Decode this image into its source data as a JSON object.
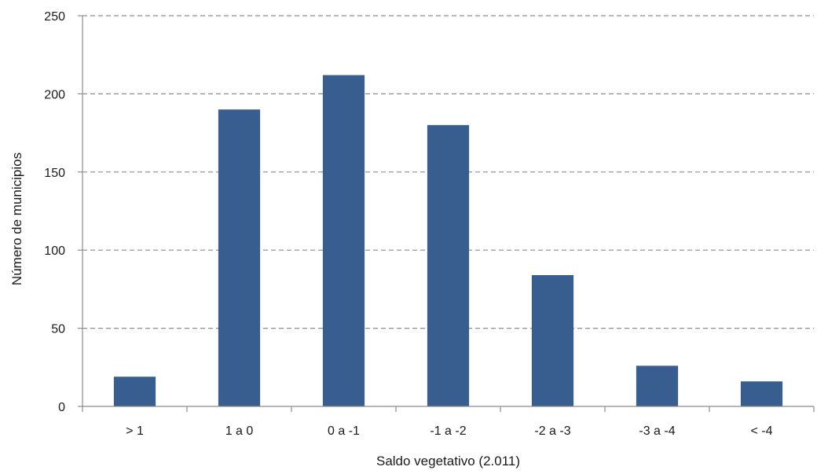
{
  "chart_data": {
    "type": "bar",
    "categories": [
      "> 1",
      "1 a 0",
      "0 a -1",
      "-1 a -2",
      "-2 a -3",
      "-3 a -4",
      "< -4"
    ],
    "values": [
      19,
      190,
      212,
      180,
      84,
      26,
      16
    ],
    "xlabel": "Saldo vegetativo (2.011)",
    "ylabel": "Número de municipios",
    "ylim": [
      0,
      250
    ],
    "yticks": [
      0,
      50,
      100,
      150,
      200,
      250
    ],
    "grid": true,
    "legend": "none",
    "bar_color": "#375e8e"
  }
}
